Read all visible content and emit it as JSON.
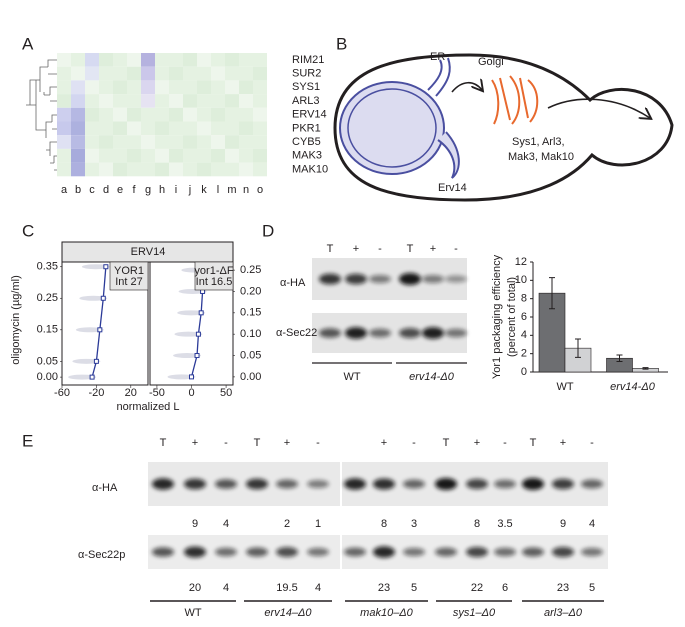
{
  "panel_labels": [
    "A",
    "B",
    "C",
    "D",
    "E"
  ],
  "panel_a": {
    "rows": [
      {
        "label": "RIM21",
        "color": "#231f20"
      },
      {
        "label": "SUR2",
        "color": "#231f20"
      },
      {
        "label": "SYS1",
        "color": "#e8692e"
      },
      {
        "label": "ARL3",
        "color": "#e8692e"
      },
      {
        "label": "ERV14",
        "color": "#4a4fa0"
      },
      {
        "label": "PKR1",
        "color": "#231f20"
      },
      {
        "label": "CYB5",
        "color": "#231f20"
      },
      {
        "label": "MAK3",
        "color": "#e8692e"
      },
      {
        "label": "MAK10",
        "color": "#e8692e"
      }
    ],
    "columns": [
      "a",
      "b",
      "c",
      "d",
      "e",
      "f",
      "g",
      "h",
      "i",
      "j",
      "k",
      "l",
      "m",
      "n",
      "o"
    ]
  },
  "panel_b": {
    "er": "ER",
    "golgi": "Golgi",
    "erv14": "Erv14",
    "cargo": [
      "Sys1, Arl3,",
      "Mak3, Mak10"
    ]
  },
  "panel_c": {
    "header": "ERV14",
    "y_label": "oligomycin (µg/ml)",
    "x_label": "normalized L",
    "facets": [
      {
        "name": "YOR1",
        "note": "Int 27",
        "xlim": [
          -60,
          40
        ],
        "xticks": [
          -60,
          -20,
          20
        ],
        "ylim": [
          -0.025,
          0.365
        ],
        "yticks": [
          {
            "value": 0,
            "label": "0.00"
          },
          {
            "value": 0.05,
            "label": "0.05"
          },
          {
            "value": 0.15,
            "label": "0.15"
          },
          {
            "value": 0.25,
            "label": "0.25"
          },
          {
            "value": 0.35,
            "label": "0.35"
          }
        ],
        "x": [
          -25,
          -20,
          -16,
          -12,
          -9
        ],
        "y": [
          0,
          0.05,
          0.15,
          0.25,
          0.35
        ]
      },
      {
        "name": "yor1-ΔF",
        "note": "Int 16.5",
        "xlim": [
          -60,
          60
        ],
        "xticks": [
          -50,
          0,
          50
        ],
        "ylim": [
          -0.019,
          0.269
        ],
        "yticks": [
          {
            "value": 0,
            "label": "0.00"
          },
          {
            "value": 0.05,
            "label": "0.05"
          },
          {
            "value": 0.1,
            "label": "0.10"
          },
          {
            "value": 0.15,
            "label": "0.15"
          },
          {
            "value": 0.2,
            "label": "0.20"
          },
          {
            "value": 0.25,
            "label": "0.25"
          }
        ],
        "x": [
          0,
          8,
          10,
          14,
          16,
          20
        ],
        "y": [
          0,
          0.05,
          0.1,
          0.15,
          0.2,
          0.25
        ]
      }
    ]
  },
  "panel_d": {
    "lanes": [
      "T",
      "+",
      "-",
      "T",
      "+",
      "-"
    ],
    "rows": [
      "α-HA",
      "α-Sec22"
    ],
    "strains": [
      "WT",
      "erv14-Δ0"
    ],
    "bar_chart": {
      "type": "bar",
      "y_label": [
        "Yor1 packaging efficiency",
        "(percent of total)"
      ],
      "categories": [
        "WT",
        "erv14-Δ0"
      ],
      "series": [
        {
          "color": "#6d6e71",
          "values": [
            8.6,
            1.5
          ],
          "errors": [
            1.7,
            0.35
          ]
        },
        {
          "color": "#d1d2d4",
          "values": [
            2.6,
            0.4
          ],
          "errors": [
            1.0,
            0.08
          ]
        }
      ],
      "ylim": [
        0,
        12
      ],
      "yticks": [
        0,
        2,
        4,
        6,
        8,
        10,
        12
      ]
    }
  },
  "panel_e": {
    "rows": [
      "α-HA",
      "α-Sec22p"
    ],
    "lanes_left": [
      "T",
      "+",
      "-",
      "T",
      "+",
      "-"
    ],
    "lanes_right": [
      "+",
      "-",
      "T",
      "+",
      "-",
      "T",
      "+",
      "-"
    ],
    "strains": [
      {
        "name": "WT",
        "ha": [
          9,
          4
        ],
        "sec22": [
          20,
          4
        ]
      },
      {
        "name": "erv14–Δ0",
        "ha": [
          2,
          1
        ],
        "sec22": [
          19.5,
          4
        ]
      },
      {
        "name": "mak10–Δ0",
        "ha": [
          8,
          3
        ],
        "sec22": [
          23,
          5
        ]
      },
      {
        "name": "sys1–Δ0",
        "ha": [
          8,
          3.5
        ],
        "sec22": [
          22,
          6
        ]
      },
      {
        "name": "arl3–Δ0",
        "ha": [
          9,
          4
        ],
        "sec22": [
          23,
          5
        ]
      }
    ]
  }
}
